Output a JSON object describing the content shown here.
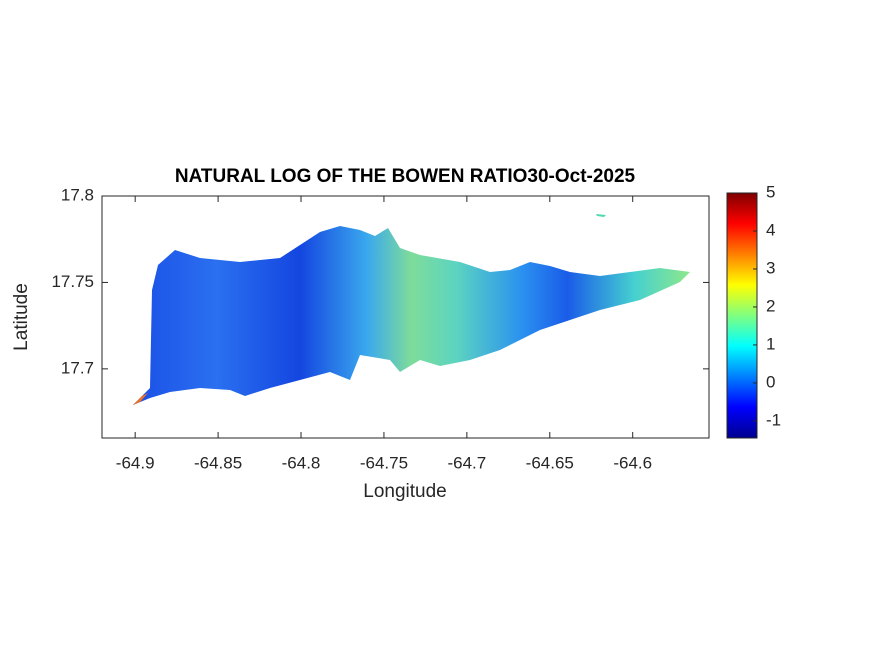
{
  "chart_data": {
    "type": "map",
    "title": "NATURAL LOG OF THE BOWEN RATIO30-Oct-2025",
    "xlabel": "Longitude",
    "ylabel": "Latitude",
    "xlim": [
      -64.92,
      -64.554
    ],
    "ylim": [
      17.66,
      17.8
    ],
    "xticks": [
      -64.9,
      -64.85,
      -64.8,
      -64.75,
      -64.7,
      -64.65,
      -64.6
    ],
    "yticks": [
      17.7,
      17.75,
      17.8
    ],
    "colorbar": {
      "colormap": "jet",
      "clim": [
        -1.45,
        5
      ],
      "ticks": [
        -1,
        0,
        1,
        2,
        3,
        4,
        5
      ]
    }
  }
}
